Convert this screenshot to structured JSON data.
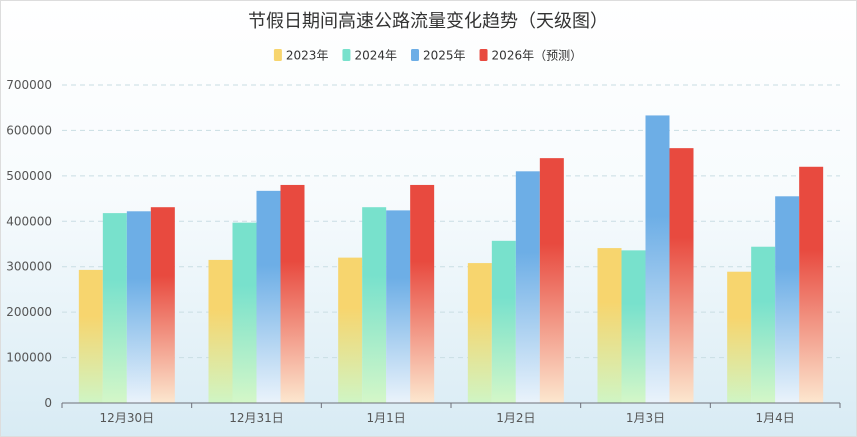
{
  "chart_data": {
    "type": "bar",
    "title": "节假日期间高速公路流量变化趋势（天级图）",
    "categories": [
      "12月30日",
      "12月31日",
      "1月1日",
      "1月2日",
      "1月3日",
      "1月4日"
    ],
    "series": [
      {
        "name": "2023年",
        "values": [
          293000,
          315000,
          320000,
          308000,
          341000,
          289000
        ],
        "color": "#F7D56E",
        "color_bottom": "#CFF5C4"
      },
      {
        "name": "2024年",
        "values": [
          418000,
          397000,
          431000,
          357000,
          336000,
          344000
        ],
        "color": "#78E1CC",
        "color_bottom": "#D4F7C8"
      },
      {
        "name": "2025年",
        "values": [
          422000,
          467000,
          424000,
          510000,
          633000,
          455000
        ],
        "color": "#6DAEE6",
        "color_bottom": "#EAF3FB"
      },
      {
        "name": "2026年（预测）",
        "values": [
          431000,
          480000,
          480000,
          539000,
          561000,
          520000
        ],
        "color": "#E84A3F",
        "color_bottom": "#FCE7CF"
      }
    ],
    "yticks": [
      "0",
      "100000",
      "200000",
      "300000",
      "400000",
      "500000",
      "600000",
      "700000"
    ],
    "ylim": [
      0,
      700000
    ],
    "grid": true,
    "legend_position": "top-center"
  }
}
